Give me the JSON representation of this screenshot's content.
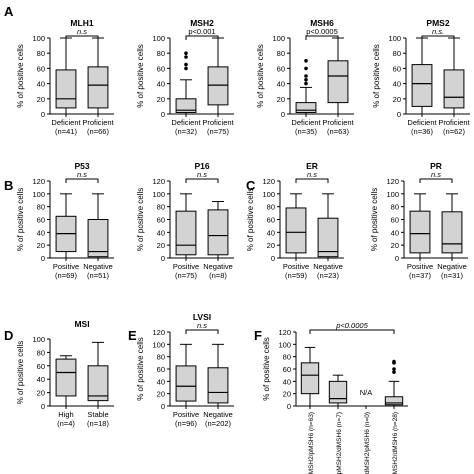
{
  "figure": {
    "y_axis_label": "% of positive cells",
    "colors": {
      "box_fill": "#d3d3d3",
      "stroke": "#000000",
      "background": "#ffffff"
    }
  },
  "chart_data": [
    {
      "panel_letter": "A",
      "title": "MLH1",
      "type": "box",
      "ylim": [
        0,
        100
      ],
      "yticks": [
        0,
        20,
        40,
        60,
        80,
        100
      ],
      "categories": [
        "Deficient",
        "Proficient"
      ],
      "ns": [
        "(n=41)",
        "(n=66)"
      ],
      "boxes": [
        {
          "whisker_low": 0,
          "q1": 8,
          "median": 20,
          "q3": 58,
          "whisker_high": 100,
          "outliers": []
        },
        {
          "whisker_low": 0,
          "q1": 8,
          "median": 38,
          "q3": 62,
          "whisker_high": 100,
          "outliers": []
        }
      ],
      "significance": "n.s",
      "significance_italic": true
    },
    {
      "panel_letter": "",
      "title": "MSH2",
      "type": "box",
      "ylim": [
        0,
        100
      ],
      "yticks": [
        0,
        20,
        40,
        60,
        80,
        100
      ],
      "categories": [
        "Deficient",
        "Proficient"
      ],
      "ns": [
        "(n=32)",
        "(n=75)"
      ],
      "boxes": [
        {
          "whisker_low": 0,
          "q1": 2,
          "median": 5,
          "q3": 20,
          "whisker_high": 45,
          "outliers": [
            60,
            65,
            75,
            80
          ]
        },
        {
          "whisker_low": 0,
          "q1": 12,
          "median": 38,
          "q3": 62,
          "whisker_high": 100,
          "outliers": []
        }
      ],
      "significance": "p<0.001",
      "significance_italic": false
    },
    {
      "panel_letter": "",
      "title": "MSH6",
      "type": "box",
      "ylim": [
        0,
        100
      ],
      "yticks": [
        0,
        20,
        40,
        60,
        80,
        100
      ],
      "categories": [
        "Deficient",
        "Proficient"
      ],
      "ns": [
        "(n=35)",
        "(n=63)"
      ],
      "boxes": [
        {
          "whisker_low": 0,
          "q1": 2,
          "median": 5,
          "q3": 15,
          "whisker_high": 35,
          "outliers": [
            40,
            45,
            50,
            60,
            70
          ]
        },
        {
          "whisker_low": 0,
          "q1": 15,
          "median": 50,
          "q3": 70,
          "whisker_high": 100,
          "outliers": []
        }
      ],
      "significance": "p<0.0005",
      "significance_italic": false
    },
    {
      "panel_letter": "",
      "title": "PMS2",
      "type": "box",
      "ylim": [
        0,
        100
      ],
      "yticks": [
        0,
        20,
        40,
        60,
        80,
        100
      ],
      "categories": [
        "Deficient",
        "Proficient"
      ],
      "ns": [
        "(n=36)",
        "(n=62)"
      ],
      "boxes": [
        {
          "whisker_low": 0,
          "q1": 10,
          "median": 40,
          "q3": 65,
          "whisker_high": 100,
          "outliers": []
        },
        {
          "whisker_low": 0,
          "q1": 8,
          "median": 22,
          "q3": 58,
          "whisker_high": 100,
          "outliers": []
        }
      ],
      "significance": "n.s.",
      "significance_italic": true
    },
    {
      "panel_letter": "B",
      "title": "P53",
      "type": "box",
      "ylim": [
        0,
        120
      ],
      "yticks": [
        0,
        20,
        40,
        60,
        80,
        100,
        120
      ],
      "categories": [
        "Positive",
        "Negative"
      ],
      "ns": [
        "(n=69)",
        "(n=51)"
      ],
      "boxes": [
        {
          "whisker_low": 0,
          "q1": 10,
          "median": 38,
          "q3": 65,
          "whisker_high": 100,
          "outliers": []
        },
        {
          "whisker_low": 0,
          "q1": 2,
          "median": 10,
          "q3": 60,
          "whisker_high": 100,
          "outliers": []
        }
      ],
      "significance": "n.s",
      "significance_italic": true
    },
    {
      "panel_letter": "",
      "title": "P16",
      "type": "box",
      "ylim": [
        0,
        120
      ],
      "yticks": [
        0,
        20,
        40,
        60,
        80,
        100,
        120
      ],
      "categories": [
        "Positive",
        "Negative"
      ],
      "ns": [
        "(n=75)",
        "(n=8)"
      ],
      "boxes": [
        {
          "whisker_low": 0,
          "q1": 5,
          "median": 20,
          "q3": 73,
          "whisker_high": 100,
          "outliers": []
        },
        {
          "whisker_low": 0,
          "q1": 5,
          "median": 35,
          "q3": 75,
          "whisker_high": 88,
          "outliers": []
        }
      ],
      "significance": "n.s",
      "significance_italic": true
    },
    {
      "panel_letter": "C",
      "title": "ER",
      "type": "box",
      "ylim": [
        0,
        120
      ],
      "yticks": [
        0,
        20,
        40,
        60,
        80,
        100,
        120
      ],
      "categories": [
        "Positive",
        "Negative"
      ],
      "ns": [
        "(n=59)",
        "(n=23)"
      ],
      "boxes": [
        {
          "whisker_low": 0,
          "q1": 8,
          "median": 40,
          "q3": 78,
          "whisker_high": 100,
          "outliers": []
        },
        {
          "whisker_low": 0,
          "q1": 2,
          "median": 10,
          "q3": 62,
          "whisker_high": 100,
          "outliers": []
        }
      ],
      "significance": "n.s",
      "significance_italic": true
    },
    {
      "panel_letter": "",
      "title": "PR",
      "type": "box",
      "ylim": [
        0,
        120
      ],
      "yticks": [
        0,
        20,
        40,
        60,
        80,
        100,
        120
      ],
      "categories": [
        "Positive",
        "Negative"
      ],
      "ns": [
        "(n=37)",
        "(n=31)"
      ],
      "boxes": [
        {
          "whisker_low": 0,
          "q1": 8,
          "median": 38,
          "q3": 73,
          "whisker_high": 100,
          "outliers": []
        },
        {
          "whisker_low": 0,
          "q1": 8,
          "median": 22,
          "q3": 72,
          "whisker_high": 100,
          "outliers": []
        }
      ],
      "significance": "n.s",
      "significance_italic": true
    },
    {
      "panel_letter": "D",
      "title": "MSI",
      "type": "box",
      "ylim": [
        0,
        100
      ],
      "yticks": [
        0,
        20,
        40,
        60,
        80,
        100
      ],
      "categories": [
        "High",
        "Stable"
      ],
      "ns": [
        "(n=4)",
        "(n=18)"
      ],
      "boxes": [
        {
          "whisker_low": 0,
          "q1": 15,
          "median": 50,
          "q3": 70,
          "whisker_high": 75,
          "outliers": []
        },
        {
          "whisker_low": 0,
          "q1": 8,
          "median": 15,
          "q3": 60,
          "whisker_high": 95,
          "outliers": []
        }
      ],
      "significance": "",
      "significance_italic": false
    },
    {
      "panel_letter": "E",
      "title": "LVSI",
      "type": "box",
      "ylim": [
        0,
        120
      ],
      "yticks": [
        0,
        20,
        40,
        60,
        80,
        100,
        120
      ],
      "categories": [
        "Positive",
        "Negative"
      ],
      "ns": [
        "(n=96)",
        "(n=202)"
      ],
      "boxes": [
        {
          "whisker_low": 0,
          "q1": 8,
          "median": 32,
          "q3": 65,
          "whisker_high": 100,
          "outliers": []
        },
        {
          "whisker_low": 0,
          "q1": 5,
          "median": 22,
          "q3": 62,
          "whisker_high": 100,
          "outliers": []
        }
      ],
      "significance": "n.s",
      "significance_italic": true
    },
    {
      "panel_letter": "F",
      "title": "",
      "type": "box",
      "ylim": [
        0,
        120
      ],
      "yticks": [
        0,
        20,
        40,
        60,
        80,
        100,
        120
      ],
      "categories": [
        "pMSH2/pMSH6",
        "pMSH2/dMSH6",
        "dMSH2/pMSH6",
        "dMSH2/dMSH6"
      ],
      "ns": [
        "(n=63)",
        "(n=7)",
        "(n=0)",
        "(n=28)"
      ],
      "boxes": [
        {
          "whisker_low": 0,
          "q1": 20,
          "median": 50,
          "q3": 70,
          "whisker_high": 95,
          "outliers": []
        },
        {
          "whisker_low": 0,
          "q1": 5,
          "median": 12,
          "q3": 40,
          "whisker_high": 50,
          "outliers": []
        },
        null,
        {
          "whisker_low": 0,
          "q1": 2,
          "median": 5,
          "q3": 15,
          "whisker_high": 40,
          "outliers": [
            55,
            60,
            70,
            72
          ]
        }
      ],
      "na_label": "N/A",
      "significance": "p<0.0005",
      "significance_italic": true
    }
  ]
}
